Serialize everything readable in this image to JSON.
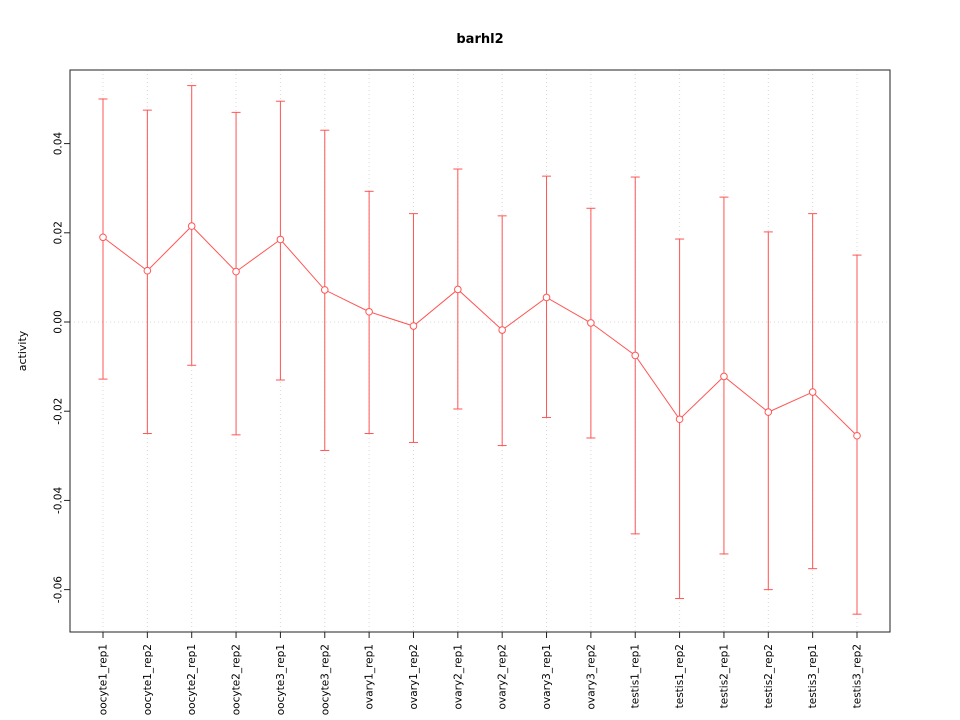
{
  "chart_data": {
    "type": "line",
    "title": "barhl2",
    "xlabel": "",
    "ylabel": "activity",
    "legend": "none",
    "grid": "dotted vertical gridlines at each category; dotted horizontal line at y=0",
    "marker": "open-circle",
    "error_bars": true,
    "color": "#ff5555",
    "grid_color": "#d8d8d8",
    "axis_color": "#222222",
    "ylim": [
      -0.0695,
      0.0565
    ],
    "yticks": [
      0.04,
      0.02,
      0,
      -0.02,
      -0.04,
      -0.06
    ],
    "ytick_labels": [
      "0.04",
      "0.02",
      "0.00",
      "-0.02",
      "-0.04",
      "-0.06"
    ],
    "categories": [
      "oocyte1_rep1",
      "oocyte1_rep2",
      "oocyte2_rep1",
      "oocyte2_rep2",
      "oocyte3_rep1",
      "oocyte3_rep2",
      "ovary1_rep1",
      "ovary1_rep2",
      "ovary2_rep1",
      "ovary2_rep2",
      "ovary3_rep1",
      "ovary3_rep2",
      "testis1_rep1",
      "testis1_rep2",
      "testis2_rep1",
      "testis2_rep2",
      "testis3_rep1",
      "testis3_rep2"
    ],
    "series": [
      {
        "name": "activity",
        "values": [
          0.019,
          0.0115,
          0.0215,
          0.0113,
          0.0185,
          0.0072,
          0.0023,
          -0.0009,
          0.0073,
          -0.0018,
          0.0055,
          -0.0002,
          -0.0075,
          -0.0218,
          -0.0122,
          -0.0202,
          -0.0157,
          -0.0255
        ],
        "upper": [
          0.05,
          0.0475,
          0.053,
          0.047,
          0.0495,
          0.043,
          0.0293,
          0.0243,
          0.0343,
          0.0238,
          0.0327,
          0.0255,
          0.0325,
          0.0186,
          0.028,
          0.0202,
          0.0243,
          0.015
        ],
        "lower": [
          -0.0128,
          -0.025,
          -0.0097,
          -0.0253,
          -0.013,
          -0.0288,
          -0.025,
          -0.027,
          -0.0195,
          -0.0277,
          -0.0214,
          -0.026,
          -0.0475,
          -0.062,
          -0.052,
          -0.06,
          -0.0553,
          -0.0655
        ]
      }
    ]
  }
}
